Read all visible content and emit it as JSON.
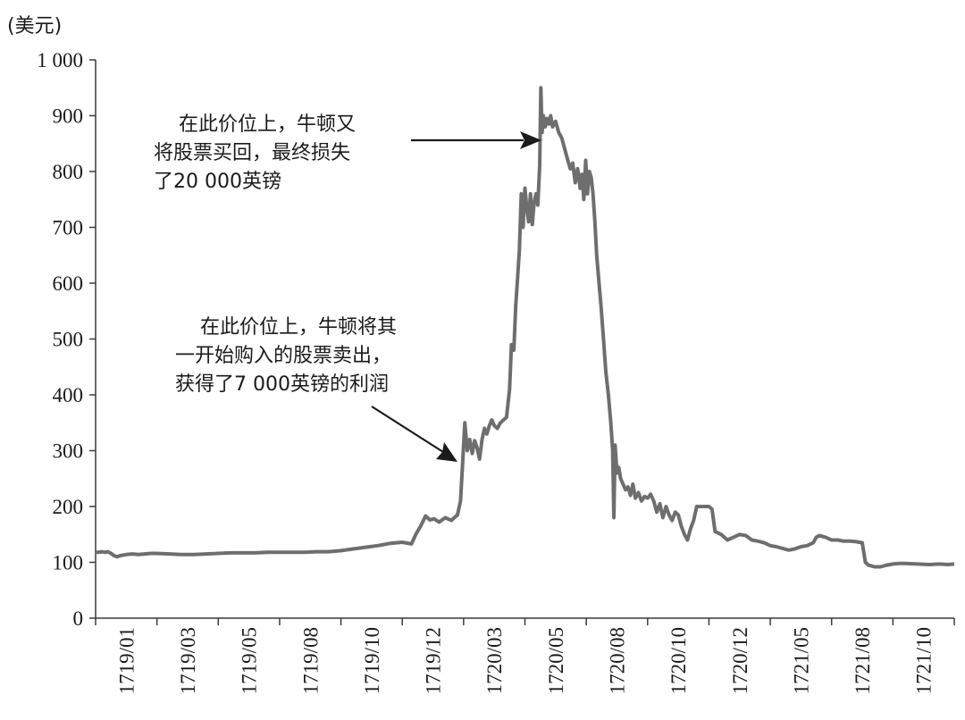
{
  "chart_data": {
    "type": "line",
    "ylabel": "(美元)",
    "ylim": [
      0,
      1000
    ],
    "y_ticks": [
      "0",
      "100",
      "200",
      "300",
      "400",
      "500",
      "600",
      "700",
      "800",
      "900",
      "1 000"
    ],
    "x_ticks": [
      "1719/01",
      "1719/03",
      "1719/05",
      "1719/08",
      "1719/10",
      "1719/12",
      "1720/03",
      "1720/05",
      "1720/08",
      "1720/10",
      "1720/12",
      "1721/05",
      "1721/08",
      "1721/10"
    ],
    "grid": false,
    "series": [
      {
        "color": "#6e6e6e",
        "points": [
          [
            0.0,
            118
          ],
          [
            0.05,
            118
          ],
          [
            0.1,
            119
          ],
          [
            0.16,
            118
          ],
          [
            0.2,
            119
          ],
          [
            0.25,
            116
          ],
          [
            0.3,
            112
          ],
          [
            0.35,
            110
          ],
          [
            0.4,
            112
          ],
          [
            0.5,
            114
          ],
          [
            0.6,
            115
          ],
          [
            0.7,
            114
          ],
          [
            0.8,
            115
          ],
          [
            0.9,
            116
          ],
          [
            1.0,
            116
          ],
          [
            1.2,
            115
          ],
          [
            1.4,
            114
          ],
          [
            1.6,
            114
          ],
          [
            1.8,
            115
          ],
          [
            2.0,
            116
          ],
          [
            2.2,
            117
          ],
          [
            2.4,
            117
          ],
          [
            2.6,
            117
          ],
          [
            2.8,
            118
          ],
          [
            3.0,
            118
          ],
          [
            3.2,
            118
          ],
          [
            3.4,
            118
          ],
          [
            3.6,
            119
          ],
          [
            3.8,
            119
          ],
          [
            4.0,
            121
          ],
          [
            4.2,
            124
          ],
          [
            4.4,
            127
          ],
          [
            4.6,
            130
          ],
          [
            4.8,
            134
          ],
          [
            5.0,
            136
          ],
          [
            5.15,
            133
          ],
          [
            5.22,
            150
          ],
          [
            5.3,
            165
          ],
          [
            5.38,
            183
          ],
          [
            5.45,
            176
          ],
          [
            5.52,
            178
          ],
          [
            5.6,
            172
          ],
          [
            5.7,
            180
          ],
          [
            5.8,
            175
          ],
          [
            5.9,
            185
          ],
          [
            5.95,
            210
          ],
          [
            5.98,
            270
          ],
          [
            6.02,
            350
          ],
          [
            6.06,
            300
          ],
          [
            6.1,
            320
          ],
          [
            6.14,
            295
          ],
          [
            6.18,
            318
          ],
          [
            6.22,
            305
          ],
          [
            6.26,
            285
          ],
          [
            6.3,
            320
          ],
          [
            6.34,
            340
          ],
          [
            6.38,
            330
          ],
          [
            6.42,
            345
          ],
          [
            6.46,
            355
          ],
          [
            6.5,
            345
          ],
          [
            6.55,
            340
          ],
          [
            6.6,
            350
          ],
          [
            6.65,
            355
          ],
          [
            6.7,
            360
          ],
          [
            6.75,
            410
          ],
          [
            6.78,
            490
          ],
          [
            6.82,
            480
          ],
          [
            6.85,
            560
          ],
          [
            6.88,
            610
          ],
          [
            6.91,
            660
          ],
          [
            6.94,
            760
          ],
          [
            6.97,
            700
          ],
          [
            7.0,
            770
          ],
          [
            7.03,
            735
          ],
          [
            7.06,
            710
          ],
          [
            7.09,
            760
          ],
          [
            7.12,
            705
          ],
          [
            7.15,
            745
          ],
          [
            7.18,
            760
          ],
          [
            7.21,
            740
          ],
          [
            7.24,
            810
          ],
          [
            7.26,
            950
          ],
          [
            7.28,
            870
          ],
          [
            7.3,
            900
          ],
          [
            7.33,
            880
          ],
          [
            7.36,
            895
          ],
          [
            7.39,
            885
          ],
          [
            7.42,
            900
          ],
          [
            7.45,
            880
          ],
          [
            7.5,
            890
          ],
          [
            7.55,
            870
          ],
          [
            7.6,
            860
          ],
          [
            7.65,
            840
          ],
          [
            7.7,
            820
          ],
          [
            7.74,
            805
          ],
          [
            7.78,
            815
          ],
          [
            7.82,
            780
          ],
          [
            7.86,
            805
          ],
          [
            7.9,
            770
          ],
          [
            7.93,
            795
          ],
          [
            7.96,
            750
          ],
          [
            7.99,
            820
          ],
          [
            8.02,
            760
          ],
          [
            8.05,
            800
          ],
          [
            8.08,
            790
          ],
          [
            8.11,
            760
          ],
          [
            8.14,
            710
          ],
          [
            8.17,
            650
          ],
          [
            8.2,
            610
          ],
          [
            8.24,
            560
          ],
          [
            8.28,
            500
          ],
          [
            8.32,
            440
          ],
          [
            8.36,
            400
          ],
          [
            8.4,
            350
          ],
          [
            8.43,
            300
          ],
          [
            8.45,
            180
          ],
          [
            8.47,
            310
          ],
          [
            8.5,
            260
          ],
          [
            8.53,
            270
          ],
          [
            8.56,
            250
          ],
          [
            8.6,
            240
          ],
          [
            8.64,
            230
          ],
          [
            8.68,
            235
          ],
          [
            8.72,
            220
          ],
          [
            8.76,
            240
          ],
          [
            8.8,
            215
          ],
          [
            8.85,
            225
          ],
          [
            8.9,
            210
          ],
          [
            8.95,
            218
          ],
          [
            9.0,
            215
          ],
          [
            9.05,
            222
          ],
          [
            9.1,
            210
          ],
          [
            9.15,
            190
          ],
          [
            9.2,
            205
          ],
          [
            9.25,
            180
          ],
          [
            9.3,
            200
          ],
          [
            9.35,
            185
          ],
          [
            9.4,
            175
          ],
          [
            9.45,
            190
          ],
          [
            9.5,
            185
          ],
          [
            9.55,
            165
          ],
          [
            9.6,
            150
          ],
          [
            9.65,
            140
          ],
          [
            9.7,
            160
          ],
          [
            9.75,
            175
          ],
          [
            9.8,
            200
          ],
          [
            9.85,
            200
          ],
          [
            9.9,
            200
          ],
          [
            10.0,
            200
          ],
          [
            10.05,
            195
          ],
          [
            10.1,
            155
          ],
          [
            10.2,
            150
          ],
          [
            10.3,
            140
          ],
          [
            10.4,
            145
          ],
          [
            10.5,
            150
          ],
          [
            10.6,
            148
          ],
          [
            10.7,
            140
          ],
          [
            10.8,
            138
          ],
          [
            10.9,
            135
          ],
          [
            11.0,
            130
          ],
          [
            11.1,
            128
          ],
          [
            11.2,
            125
          ],
          [
            11.3,
            122
          ],
          [
            11.4,
            124
          ],
          [
            11.5,
            128
          ],
          [
            11.6,
            130
          ],
          [
            11.7,
            135
          ],
          [
            11.75,
            145
          ],
          [
            11.8,
            148
          ],
          [
            11.9,
            145
          ],
          [
            12.0,
            140
          ],
          [
            12.1,
            140
          ],
          [
            12.2,
            138
          ],
          [
            12.3,
            138
          ],
          [
            12.4,
            137
          ],
          [
            12.5,
            135
          ],
          [
            12.55,
            100
          ],
          [
            12.6,
            95
          ],
          [
            12.7,
            92
          ],
          [
            12.8,
            92
          ],
          [
            12.9,
            95
          ],
          [
            13.0,
            97
          ],
          [
            13.1,
            98
          ],
          [
            13.2,
            98
          ],
          [
            13.4,
            97
          ],
          [
            13.6,
            96
          ],
          [
            13.75,
            97
          ],
          [
            13.9,
            96
          ],
          [
            14.0,
            97
          ]
        ]
      }
    ],
    "annotations": [
      {
        "lines": [
          "在此价位上，牛顿又",
          "将股票买回，最终损失",
          "了20 000英镑"
        ]
      },
      {
        "lines": [
          "在此价位上，牛顿将其",
          "一开始购入的股票卖出，",
          "获得了7 000英镑的利润"
        ]
      }
    ]
  }
}
